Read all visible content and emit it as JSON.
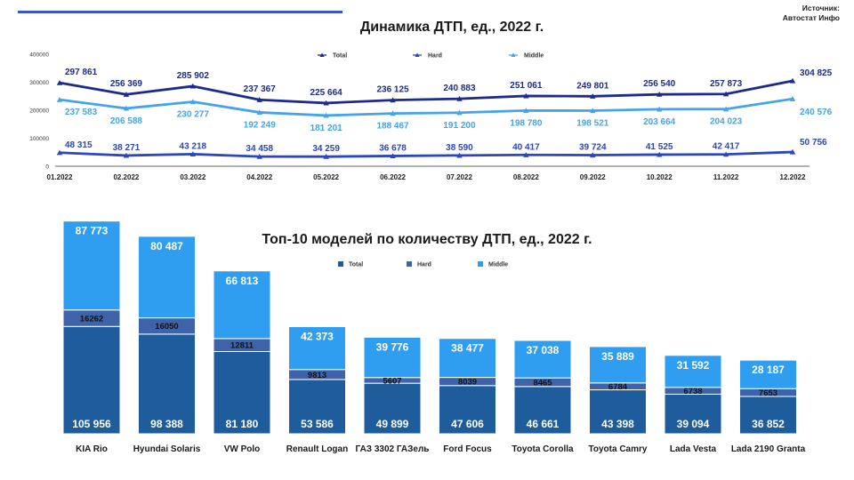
{
  "source": {
    "line1": "Источник:",
    "line2": "Автостат Инфо"
  },
  "colors": {
    "total": "#1c2b8c",
    "hard": "#2b46be",
    "middle": "#45a4e8",
    "bar_total": "#1e5c9c",
    "bar_hard": "#3f63a8",
    "bar_middle": "#2f9ef0",
    "accent_line": "#3a55c4"
  },
  "chart_data": [
    {
      "type": "line",
      "title": "Динамика ДТП, ед., 2022 г.",
      "categories": [
        "01.2022",
        "02.2022",
        "03.2022",
        "04.2022",
        "05.2022",
        "06.2022",
        "07.2022",
        "08.2022",
        "09.2022",
        "10.2022",
        "11.2022",
        "12.2022"
      ],
      "ylim": [
        0,
        400000
      ],
      "yticks": [
        0,
        100000,
        200000,
        300000,
        400000
      ],
      "ytick_labels": [
        "0",
        "100000",
        "200000",
        "300000",
        "400000"
      ],
      "grid": false,
      "legend": "top",
      "series": [
        {
          "key": "total",
          "name": "Total",
          "values": [
            297861,
            256369,
            285902,
            237367,
            225664,
            236125,
            240883,
            251061,
            249801,
            256540,
            257873,
            304825
          ],
          "labels": [
            "297 861",
            "256 369",
            "285 902",
            "237 367",
            "225 664",
            "236 125",
            "240 883",
            "251 061",
            "249 801",
            "256 540",
            "257 873",
            "304 825"
          ]
        },
        {
          "key": "hard",
          "name": "Hard",
          "values": [
            48315,
            38271,
            43218,
            34458,
            34259,
            36678,
            38590,
            40417,
            39724,
            41525,
            42417,
            50756
          ],
          "labels": [
            "48 315",
            "38 271",
            "43 218",
            "34 458",
            "34 259",
            "36 678",
            "38 590",
            "40 417",
            "39 724",
            "41 525",
            "42 417",
            "50 756"
          ]
        },
        {
          "key": "middle",
          "name": "Middle",
          "values": [
            237583,
            206588,
            230277,
            192249,
            181201,
            188467,
            191200,
            198780,
            198521,
            203664,
            204023,
            240576
          ],
          "labels": [
            "237 583",
            "206 588",
            "230 277",
            "192 249",
            "181 201",
            "188 467",
            "191 200",
            "198 780",
            "198 521",
            "203 664",
            "204 023",
            "240 576"
          ]
        }
      ]
    },
    {
      "type": "bar",
      "stacked": true,
      "title": "Топ-10 моделей по количеству ДТП, ед., 2022 г.",
      "categories": [
        "KIA Rio",
        "Hyundai Solaris",
        "VW Polo",
        "Renault Logan",
        "ГАЗ 3302 ГАЗель",
        "Ford Focus",
        "Toyota Corolla",
        "Toyota Camry",
        "Lada Vesta",
        "Lada 2190 Granta"
      ],
      "legend": "top",
      "series": [
        {
          "key": "total",
          "name": "Total",
          "values": [
            105956,
            98388,
            81180,
            53586,
            49899,
            47606,
            46661,
            43398,
            39094,
            36852
          ],
          "labels": [
            "105 956",
            "98 388",
            "81 180",
            "53 586",
            "49 899",
            "47 606",
            "46 661",
            "43 398",
            "39 094",
            "36 852"
          ]
        },
        {
          "key": "hard",
          "name": "Hard",
          "values": [
            16262,
            16050,
            12811,
            9813,
            5607,
            8039,
            8465,
            6784,
            6738,
            7653
          ],
          "labels": [
            "16262",
            "16050",
            "12811",
            "9813",
            "5607",
            "8039",
            "8465",
            "6784",
            "6738",
            "7653"
          ]
        },
        {
          "key": "middle",
          "name": "Middle",
          "values": [
            87773,
            80487,
            66813,
            42373,
            39776,
            38477,
            37038,
            35889,
            31592,
            28187
          ],
          "labels": [
            "87 773",
            "80 487",
            "66 813",
            "42 373",
            "39 776",
            "38 477",
            "37 038",
            "35 889",
            "31 592",
            "28 187"
          ]
        }
      ]
    }
  ]
}
